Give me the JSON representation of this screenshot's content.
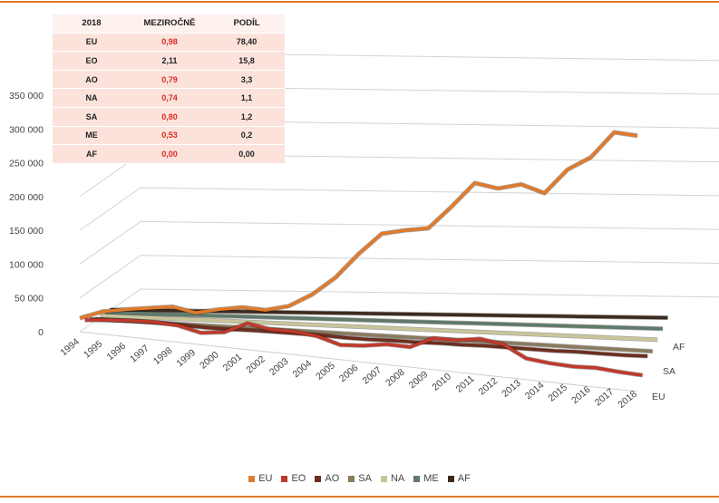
{
  "table": {
    "headers": [
      "2018",
      "MEZIROČNĚ",
      "PODÍL"
    ],
    "rows": [
      [
        "EU",
        "0,98",
        "78,40"
      ],
      [
        "EO",
        "2,11",
        "15,8"
      ],
      [
        "AO",
        "0,79",
        "3,3"
      ],
      [
        "NA",
        "0,74",
        "1,1"
      ],
      [
        "SA",
        "0,80",
        "1,2"
      ],
      [
        "ME",
        "0,53",
        "0,2"
      ],
      [
        "AF",
        "0,00",
        "0,00"
      ]
    ]
  },
  "chart_data": {
    "type": "line",
    "subtype": "3d-line",
    "title": "",
    "xlabel": "",
    "ylabel": "",
    "x": [
      "1994",
      "1995",
      "1996",
      "1997",
      "1998",
      "1999",
      "2000",
      "2001",
      "2002",
      "2003",
      "2004",
      "2005",
      "2006",
      "2007",
      "2008",
      "2009",
      "2010",
      "2011",
      "2012",
      "2013",
      "2014",
      "2015",
      "2016",
      "2017",
      "2018"
    ],
    "y_ticks": [
      "0",
      "50 000",
      "100 000",
      "150 000",
      "200 000",
      "250 000",
      "300 000",
      "350 000"
    ],
    "ylim": [
      0,
      350000
    ],
    "depth_labels": [
      "AF",
      "SA",
      "EU"
    ],
    "grid": true,
    "legend_position": "bottom",
    "series": [
      {
        "name": "EU",
        "color": "#e07a2c",
        "values": [
          20000,
          30000,
          33000,
          35000,
          37000,
          28000,
          33000,
          36000,
          32000,
          38000,
          55000,
          80000,
          115000,
          145000,
          150000,
          153000,
          185000,
          220000,
          212000,
          218000,
          205000,
          240000,
          258000,
          295000,
          290000
        ]
      },
      {
        "name": "EO",
        "color": "#c0392b",
        "values": [
          12000,
          15000,
          17000,
          18000,
          16000,
          8000,
          12000,
          28000,
          22000,
          22000,
          18000,
          8000,
          10000,
          15000,
          14000,
          30000,
          30000,
          35000,
          30000,
          12000,
          8000,
          6000,
          7000,
          4000,
          2000
        ]
      },
      {
        "name": "AO",
        "color": "#6b2e1e",
        "values": [
          8000,
          9000,
          10000,
          10000,
          9000,
          8000,
          8000,
          9000,
          9000,
          9000,
          9000,
          8000,
          8000,
          9000,
          9000,
          10000,
          10000,
          11000,
          11000,
          11000,
          11000,
          12000,
          12000,
          12000,
          13000
        ]
      },
      {
        "name": "SA",
        "color": "#8a7a5e",
        "values": [
          3000,
          3000,
          3000,
          3000,
          3000,
          3000,
          3000,
          3000,
          3000,
          3000,
          3000,
          3000,
          3000,
          3000,
          3000,
          3000,
          3000,
          3000,
          3000,
          3000,
          3000,
          3000,
          3000,
          3000,
          3000
        ]
      },
      {
        "name": "NA",
        "color": "#c8c59a",
        "values": [
          3000,
          3000,
          3000,
          3000,
          3000,
          3000,
          3000,
          3000,
          3000,
          3000,
          3000,
          3000,
          3000,
          3000,
          3000,
          3000,
          3000,
          3000,
          3000,
          3000,
          3000,
          3000,
          3000,
          3000,
          3000
        ]
      },
      {
        "name": "ME",
        "color": "#5f7a6a",
        "values": [
          2000,
          2000,
          2000,
          2000,
          2000,
          2000,
          2000,
          2000,
          2000,
          2000,
          2000,
          2000,
          2000,
          2000,
          2000,
          2000,
          2000,
          2000,
          2000,
          2000,
          2000,
          2000,
          2000,
          2000,
          2000
        ]
      },
      {
        "name": "AF",
        "color": "#3d2a1e",
        "values": [
          1000,
          1000,
          1000,
          1000,
          1000,
          1000,
          1000,
          1000,
          1000,
          1000,
          1000,
          1000,
          1000,
          1000,
          1000,
          1000,
          1000,
          1000,
          1000,
          1000,
          1000,
          1000,
          1000,
          1000,
          1000
        ]
      }
    ]
  }
}
